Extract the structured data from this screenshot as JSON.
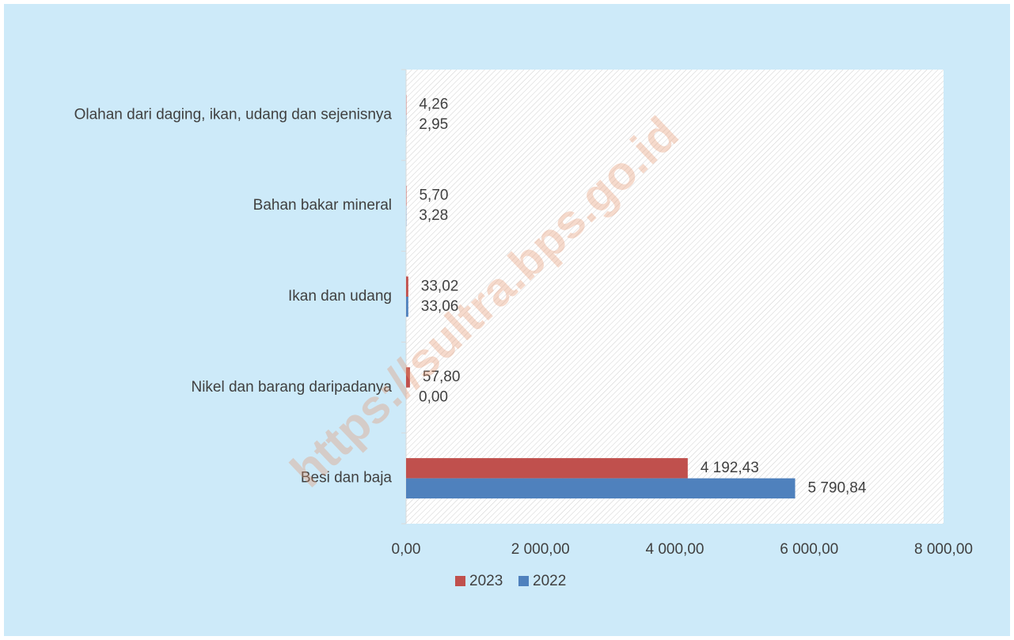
{
  "chart_data": {
    "type": "hbar",
    "categories": [
      "Olahan dari daging, ikan, udang dan sejenisnya",
      "Bahan bakar mineral",
      "Ikan dan udang",
      "Nikel dan barang daripadanya",
      "Besi dan baja"
    ],
    "series": [
      {
        "name": "2023",
        "color": "#c0504d",
        "values": [
          4.26,
          5.7,
          33.02,
          57.8,
          4192.43
        ],
        "value_labels": [
          "4,26",
          "5,70",
          "33,02",
          "57,80",
          "4 192,43"
        ]
      },
      {
        "name": "2022",
        "color": "#4f81bd",
        "values": [
          2.95,
          3.28,
          33.06,
          0.0,
          5790.84
        ],
        "value_labels": [
          "2,95",
          "3,28",
          "33,06",
          "0,00",
          "5 790,84"
        ]
      }
    ],
    "xlim": [
      0,
      8000
    ],
    "xticks": [
      {
        "value": 0,
        "label": "0,00"
      },
      {
        "value": 2000,
        "label": "2 000,00"
      },
      {
        "value": 4000,
        "label": "4 000,00"
      },
      {
        "value": 6000,
        "label": "6 000,00"
      },
      {
        "value": 8000,
        "label": "8 000,00"
      }
    ],
    "legend": "bottom",
    "watermark": "https://sultra.bps.go.id"
  }
}
